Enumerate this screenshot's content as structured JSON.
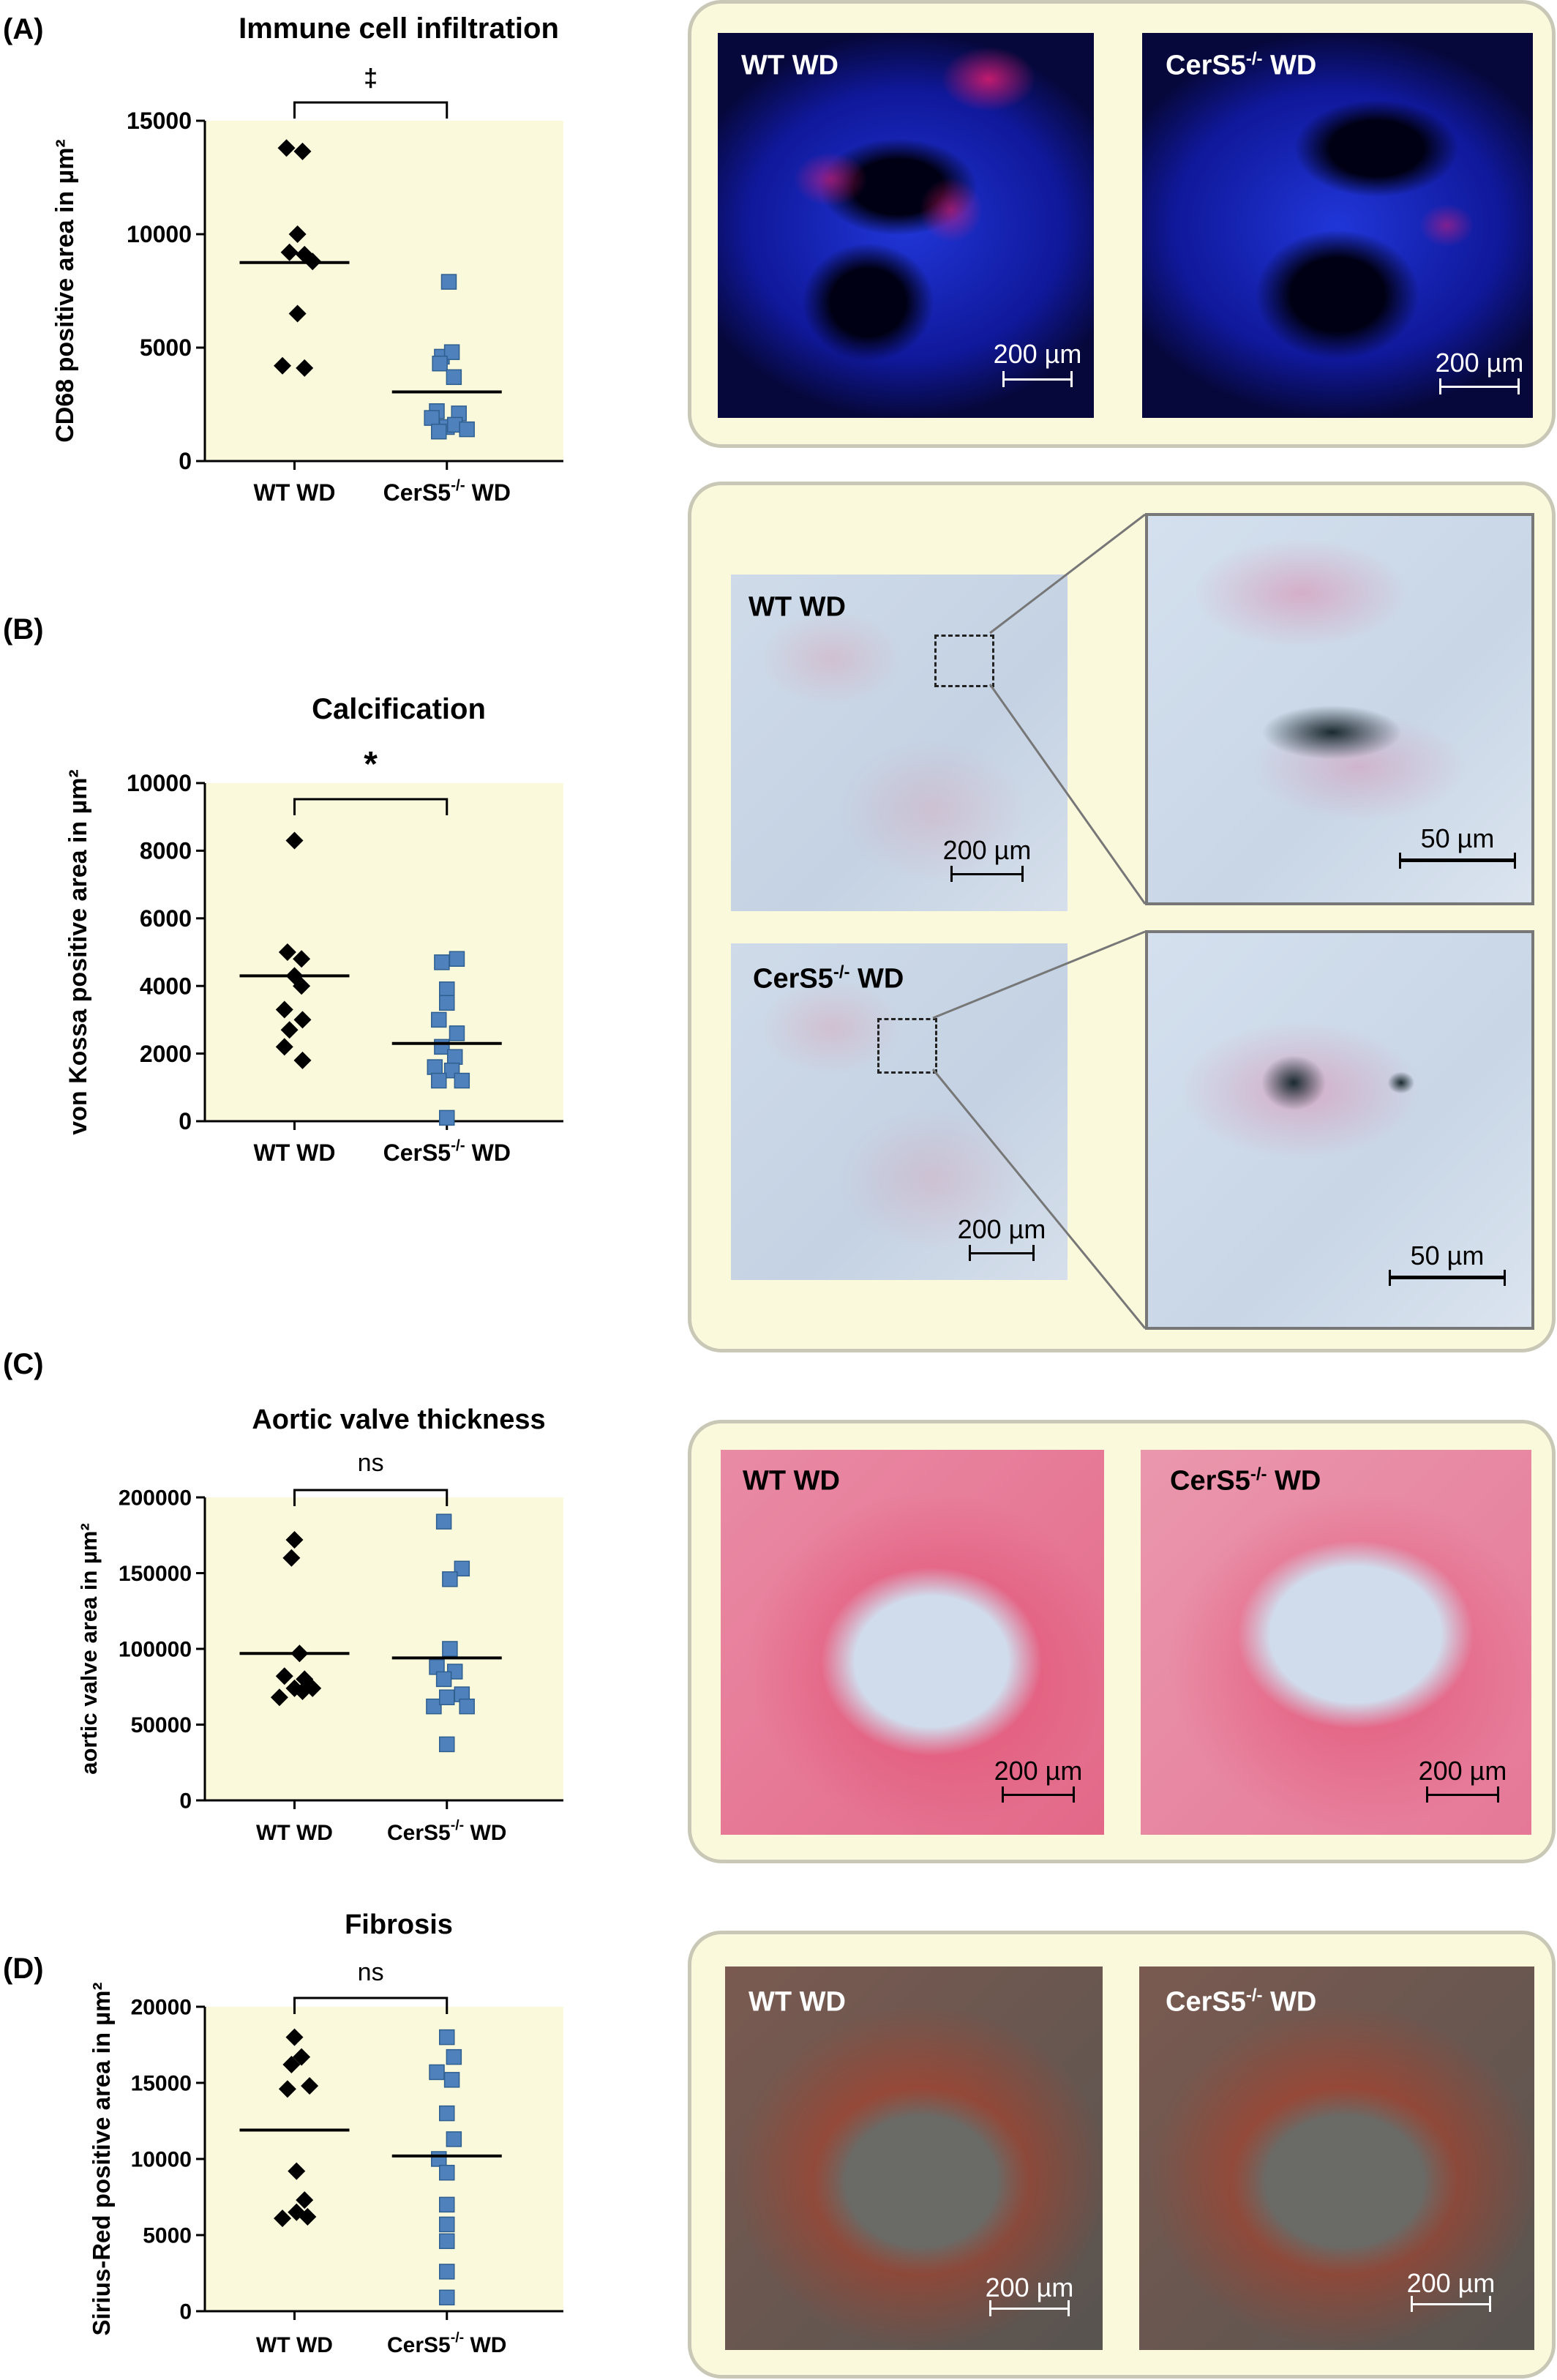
{
  "panels": {
    "a": {
      "letter": "(A)"
    },
    "b": {
      "letter": "(B)"
    },
    "c": {
      "letter": "(C)"
    },
    "d": {
      "letter": "(D)"
    }
  },
  "chart_data": [
    {
      "id": "a",
      "type": "scatter",
      "title": "Immune cell infiltration",
      "ylabel": "CD68 positive area in µm²",
      "ylim": [
        0,
        15000
      ],
      "yticks": [
        0,
        5000,
        10000,
        15000
      ],
      "categories": [
        {
          "label": "WT WD",
          "sup": ""
        },
        {
          "label": "CerS5",
          "sup": "-/-",
          "suffix": " WD"
        }
      ],
      "groups": [
        {
          "marker": "diamond",
          "color": "#000000",
          "median": 8750,
          "points": [
            [
              -0.08,
              13800
            ],
            [
              0.08,
              13650
            ],
            [
              0.03,
              10000
            ],
            [
              -0.05,
              9200
            ],
            [
              0.1,
              9100
            ],
            [
              0.18,
              8800
            ],
            [
              0.03,
              6500
            ],
            [
              -0.12,
              4200
            ],
            [
              0.1,
              4100
            ]
          ]
        },
        {
          "marker": "square",
          "color": "#4f81bd",
          "median": 3050,
          "points": [
            [
              0.02,
              7900
            ],
            [
              -0.05,
              4600
            ],
            [
              0.05,
              4800
            ],
            [
              -0.07,
              4300
            ],
            [
              0.07,
              3700
            ],
            [
              -0.1,
              2200
            ],
            [
              0.12,
              2100
            ],
            [
              -0.15,
              1900
            ],
            [
              0.0,
              1500
            ],
            [
              0.08,
              1600
            ],
            [
              -0.08,
              1300
            ],
            [
              0.2,
              1400
            ]
          ]
        }
      ],
      "significance": "‡"
    },
    {
      "id": "b",
      "type": "scatter",
      "title": "Calcification",
      "ylabel": "von Kossa positive area in µm²",
      "ylim": [
        0,
        10000
      ],
      "yticks": [
        0,
        2000,
        4000,
        6000,
        8000,
        10000
      ],
      "categories": [
        {
          "label": "WT WD",
          "sup": ""
        },
        {
          "label": "CerS5",
          "sup": "-/-",
          "suffix": " WD"
        }
      ],
      "groups": [
        {
          "marker": "diamond",
          "color": "#000000",
          "median": 4300,
          "points": [
            [
              0.0,
              8300
            ],
            [
              -0.07,
              5000
            ],
            [
              0.07,
              4800
            ],
            [
              0.0,
              4300
            ],
            [
              0.07,
              4000
            ],
            [
              -0.1,
              3300
            ],
            [
              0.08,
              3000
            ],
            [
              -0.05,
              2700
            ],
            [
              -0.1,
              2200
            ],
            [
              0.08,
              1800
            ]
          ]
        },
        {
          "marker": "square",
          "color": "#4f81bd",
          "median": 2300,
          "points": [
            [
              0.1,
              4800
            ],
            [
              -0.05,
              4700
            ],
            [
              0.0,
              3900
            ],
            [
              0.0,
              3500
            ],
            [
              -0.08,
              3000
            ],
            [
              0.1,
              2600
            ],
            [
              -0.05,
              2200
            ],
            [
              0.08,
              1900
            ],
            [
              -0.12,
              1600
            ],
            [
              0.05,
              1500
            ],
            [
              -0.08,
              1200
            ],
            [
              0.15,
              1200
            ],
            [
              0.0,
              100
            ]
          ]
        }
      ],
      "significance": "*"
    },
    {
      "id": "c",
      "type": "scatter",
      "title": "Aortic valve thickness",
      "ylabel": "aortic valve area in µm²",
      "ylim": [
        0,
        200000
      ],
      "yticks": [
        0,
        50000,
        100000,
        150000,
        200000
      ],
      "categories": [
        {
          "label": "WT WD",
          "sup": ""
        },
        {
          "label": "CerS5",
          "sup": "-/-",
          "suffix": " WD"
        }
      ],
      "groups": [
        {
          "marker": "diamond",
          "color": "#000000",
          "median": 97000,
          "points": [
            [
              0.0,
              172000
            ],
            [
              -0.03,
              160000
            ],
            [
              0.05,
              97000
            ],
            [
              -0.1,
              82000
            ],
            [
              0.1,
              80000
            ],
            [
              0.0,
              74000
            ],
            [
              -0.15,
              68000
            ],
            [
              0.08,
              72000
            ],
            [
              0.18,
              74000
            ]
          ]
        },
        {
          "marker": "square",
          "color": "#4f81bd",
          "median": 94000,
          "points": [
            [
              -0.03,
              184000
            ],
            [
              0.15,
              153000
            ],
            [
              0.03,
              146000
            ],
            [
              0.03,
              100000
            ],
            [
              -0.1,
              88000
            ],
            [
              0.08,
              85000
            ],
            [
              -0.03,
              80000
            ],
            [
              0.15,
              70000
            ],
            [
              -0.13,
              62000
            ],
            [
              0.0,
              68000
            ],
            [
              0.2,
              62000
            ],
            [
              0.0,
              37000
            ]
          ]
        }
      ],
      "significance": "ns"
    },
    {
      "id": "d",
      "type": "scatter",
      "title": "Fibrosis",
      "ylabel": "Sirius-Red positive area in µm²",
      "ylim": [
        0,
        20000
      ],
      "yticks": [
        0,
        5000,
        10000,
        15000,
        20000
      ],
      "categories": [
        {
          "label": "WT WD",
          "sup": ""
        },
        {
          "label": "CerS5",
          "sup": "-/-",
          "suffix": " WD"
        }
      ],
      "groups": [
        {
          "marker": "diamond",
          "color": "#000000",
          "median": 11900,
          "points": [
            [
              0.0,
              18000
            ],
            [
              0.07,
              16700
            ],
            [
              -0.03,
              16200
            ],
            [
              0.15,
              14800
            ],
            [
              -0.07,
              14600
            ],
            [
              0.02,
              9200
            ],
            [
              0.1,
              7300
            ],
            [
              0.02,
              6500
            ],
            [
              -0.12,
              6100
            ],
            [
              0.13,
              6200
            ]
          ]
        },
        {
          "marker": "square",
          "color": "#4f81bd",
          "median": 10200,
          "points": [
            [
              0.0,
              18000
            ],
            [
              0.07,
              16700
            ],
            [
              -0.1,
              15700
            ],
            [
              0.05,
              15200
            ],
            [
              0.0,
              13000
            ],
            [
              0.07,
              11300
            ],
            [
              -0.08,
              10000
            ],
            [
              0.0,
              9100
            ],
            [
              0.0,
              7000
            ],
            [
              0.0,
              5700
            ],
            [
              0.0,
              4600
            ],
            [
              0.0,
              2600
            ],
            [
              0.0,
              900
            ]
          ]
        }
      ],
      "significance": "ns"
    }
  ],
  "micrographs": {
    "a_wt": {
      "label": "WT WD",
      "sup": "",
      "suffix": "",
      "scale": "200 µm"
    },
    "a_ko": {
      "label": "CerS5",
      "sup": "-/-",
      "suffix": " WD",
      "scale": "200 µm"
    },
    "b_wt": {
      "label": "WT WD",
      "sup": "",
      "suffix": "",
      "scale": "200 µm"
    },
    "b_wt_zoom": {
      "scale": "50 µm"
    },
    "b_ko": {
      "label": "CerS5",
      "sup": "-/-",
      "suffix": " WD",
      "scale": "200 µm"
    },
    "b_ko_zoom": {
      "scale": "50 µm"
    },
    "c_wt": {
      "label": "WT WD",
      "sup": "",
      "suffix": "",
      "scale": "200 µm"
    },
    "c_ko": {
      "label": "CerS5",
      "sup": "-/-",
      "suffix": " WD",
      "scale": "200 µm"
    },
    "d_wt": {
      "label": "WT WD",
      "sup": "",
      "suffix": "",
      "scale": "200 µm"
    },
    "d_ko": {
      "label": "CerS5",
      "sup": "-/-",
      "suffix": "  WD",
      "scale": "200 µm"
    }
  },
  "colors": {
    "plot_bg": "#fbf9dc",
    "square_marker": "#4f81bd",
    "panel_border": "#c9c7b5"
  }
}
